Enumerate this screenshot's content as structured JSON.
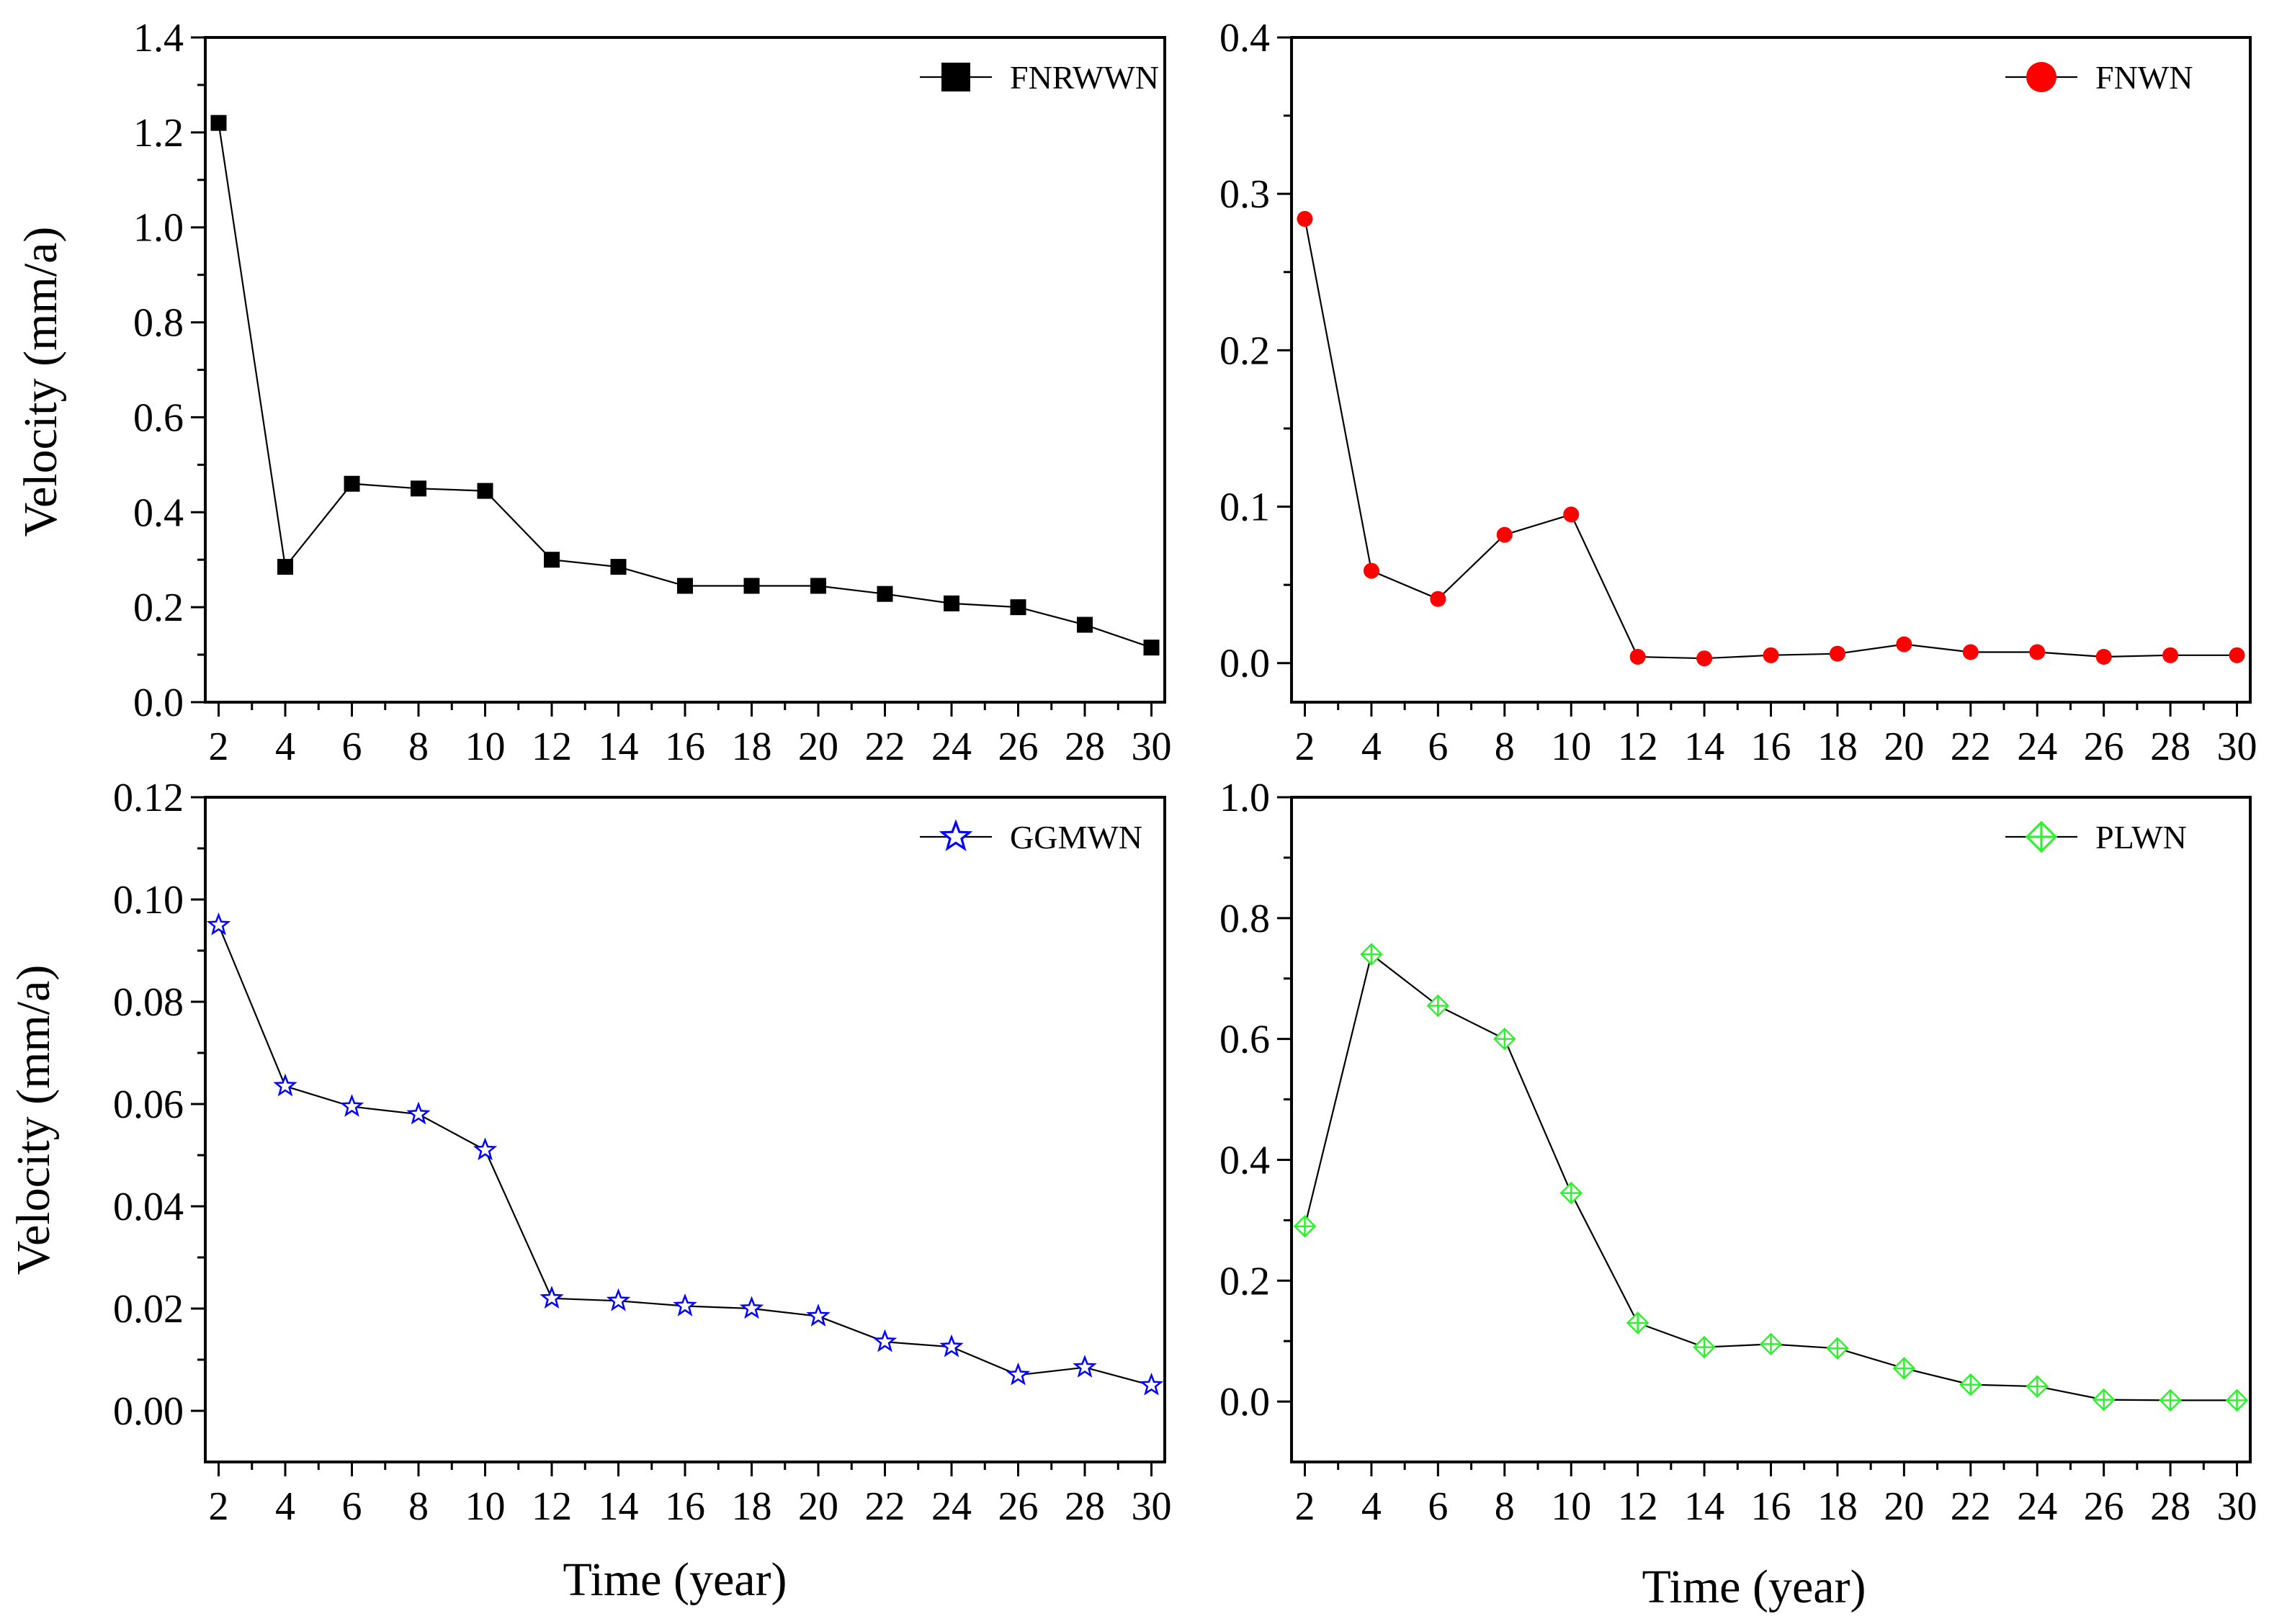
{
  "figure": {
    "axis_label_y": "Velocity (mm/a)",
    "axis_label_x": "Time (year)"
  },
  "chart_data": [
    {
      "type": "line",
      "title": "",
      "xlabel": "",
      "ylabel": "Velocity (mm/a)",
      "x": [
        2,
        4,
        6,
        8,
        10,
        12,
        14,
        16,
        18,
        20,
        22,
        24,
        26,
        28,
        30
      ],
      "xlim": [
        1.6,
        30.4
      ],
      "ylim": [
        0,
        1.4
      ],
      "xticks": [
        2,
        4,
        6,
        8,
        10,
        12,
        14,
        16,
        18,
        20,
        22,
        24,
        26,
        28,
        30
      ],
      "xtick_labels": [
        "2",
        "4",
        "6",
        "8",
        "10",
        "12",
        "14",
        "16",
        "18",
        "20",
        "22",
        "24",
        "26",
        "28",
        "30"
      ],
      "yticks": [
        0,
        0.2,
        0.4,
        0.6,
        0.8,
        1.0,
        1.2,
        1.4
      ],
      "ytick_labels": [
        "0.0",
        "0.2",
        "0.4",
        "0.6",
        "0.8",
        "1.0",
        "1.2",
        "1.4"
      ],
      "legend_position": "top-right",
      "series": [
        {
          "name": "FNRWWN",
          "marker": "square",
          "color": "#000000",
          "values": [
            1.22,
            0.285,
            0.46,
            0.45,
            0.445,
            0.3,
            0.285,
            0.245,
            0.245,
            0.245,
            0.228,
            0.208,
            0.2,
            0.163,
            0.115
          ]
        }
      ]
    },
    {
      "type": "line",
      "title": "",
      "xlabel": "",
      "ylabel": "",
      "x": [
        2,
        4,
        6,
        8,
        10,
        12,
        14,
        16,
        18,
        20,
        22,
        24,
        26,
        28,
        30
      ],
      "xlim": [
        1.6,
        30.4
      ],
      "ylim": [
        -0.025,
        0.4
      ],
      "xticks": [
        2,
        4,
        6,
        8,
        10,
        12,
        14,
        16,
        18,
        20,
        22,
        24,
        26,
        28,
        30
      ],
      "xtick_labels": [
        "2",
        "4",
        "6",
        "8",
        "10",
        "12",
        "14",
        "16",
        "18",
        "20",
        "22",
        "24",
        "26",
        "28",
        "30"
      ],
      "yticks": [
        0,
        0.1,
        0.2,
        0.3,
        0.4
      ],
      "ytick_labels": [
        "0.0",
        "0.1",
        "0.2",
        "0.3",
        "0.4"
      ],
      "legend_position": "top-right",
      "series": [
        {
          "name": "FNWN",
          "marker": "circle",
          "color": "#ff0000",
          "values": [
            0.284,
            0.059,
            0.041,
            0.082,
            0.095,
            0.004,
            0.003,
            0.005,
            0.006,
            0.012,
            0.007,
            0.007,
            0.004,
            0.005,
            0.005
          ]
        }
      ]
    },
    {
      "type": "line",
      "title": "",
      "xlabel": "Time (year)",
      "ylabel": "Velocity (mm/a)",
      "x": [
        2,
        4,
        6,
        8,
        10,
        12,
        14,
        16,
        18,
        20,
        22,
        24,
        26,
        28,
        30
      ],
      "xlim": [
        1.6,
        30.4
      ],
      "ylim": [
        -0.01,
        0.12
      ],
      "xticks": [
        2,
        4,
        6,
        8,
        10,
        12,
        14,
        16,
        18,
        20,
        22,
        24,
        26,
        28,
        30
      ],
      "xtick_labels": [
        "2",
        "4",
        "6",
        "8",
        "10",
        "12",
        "14",
        "16",
        "18",
        "20",
        "22",
        "24",
        "26",
        "28",
        "30"
      ],
      "yticks": [
        0,
        0.02,
        0.04,
        0.06,
        0.08,
        0.1,
        0.12
      ],
      "ytick_labels": [
        "0.00",
        "0.02",
        "0.04",
        "0.06",
        "0.08",
        "0.10",
        "0.12"
      ],
      "legend_position": "top-right",
      "series": [
        {
          "name": "GGMWN",
          "marker": "star",
          "color": "#0000ff",
          "values": [
            0.095,
            0.0635,
            0.0595,
            0.058,
            0.051,
            0.022,
            0.0215,
            0.0205,
            0.02,
            0.0185,
            0.0135,
            0.0125,
            0.007,
            0.0085,
            0.005
          ]
        }
      ]
    },
    {
      "type": "line",
      "title": "",
      "xlabel": "Time (year)",
      "ylabel": "",
      "x": [
        2,
        4,
        6,
        8,
        10,
        12,
        14,
        16,
        18,
        20,
        22,
        24,
        26,
        28,
        30
      ],
      "xlim": [
        1.6,
        30.4
      ],
      "ylim": [
        -0.1,
        1.0
      ],
      "xticks": [
        2,
        4,
        6,
        8,
        10,
        12,
        14,
        16,
        18,
        20,
        22,
        24,
        26,
        28,
        30
      ],
      "xtick_labels": [
        "2",
        "4",
        "6",
        "8",
        "10",
        "12",
        "14",
        "16",
        "18",
        "20",
        "22",
        "24",
        "26",
        "28",
        "30"
      ],
      "yticks": [
        0,
        0.2,
        0.4,
        0.6,
        0.8,
        1.0
      ],
      "ytick_labels": [
        "0.0",
        "0.2",
        "0.4",
        "0.6",
        "0.8",
        "1.0"
      ],
      "legend_position": "top-right",
      "series": [
        {
          "name": "PLWN",
          "marker": "diamond-cross",
          "color": "#33ee33",
          "values": [
            0.29,
            0.74,
            0.655,
            0.6,
            0.345,
            0.13,
            0.09,
            0.095,
            0.088,
            0.055,
            0.028,
            0.025,
            0.003,
            0.002,
            0.002
          ]
        }
      ]
    }
  ]
}
